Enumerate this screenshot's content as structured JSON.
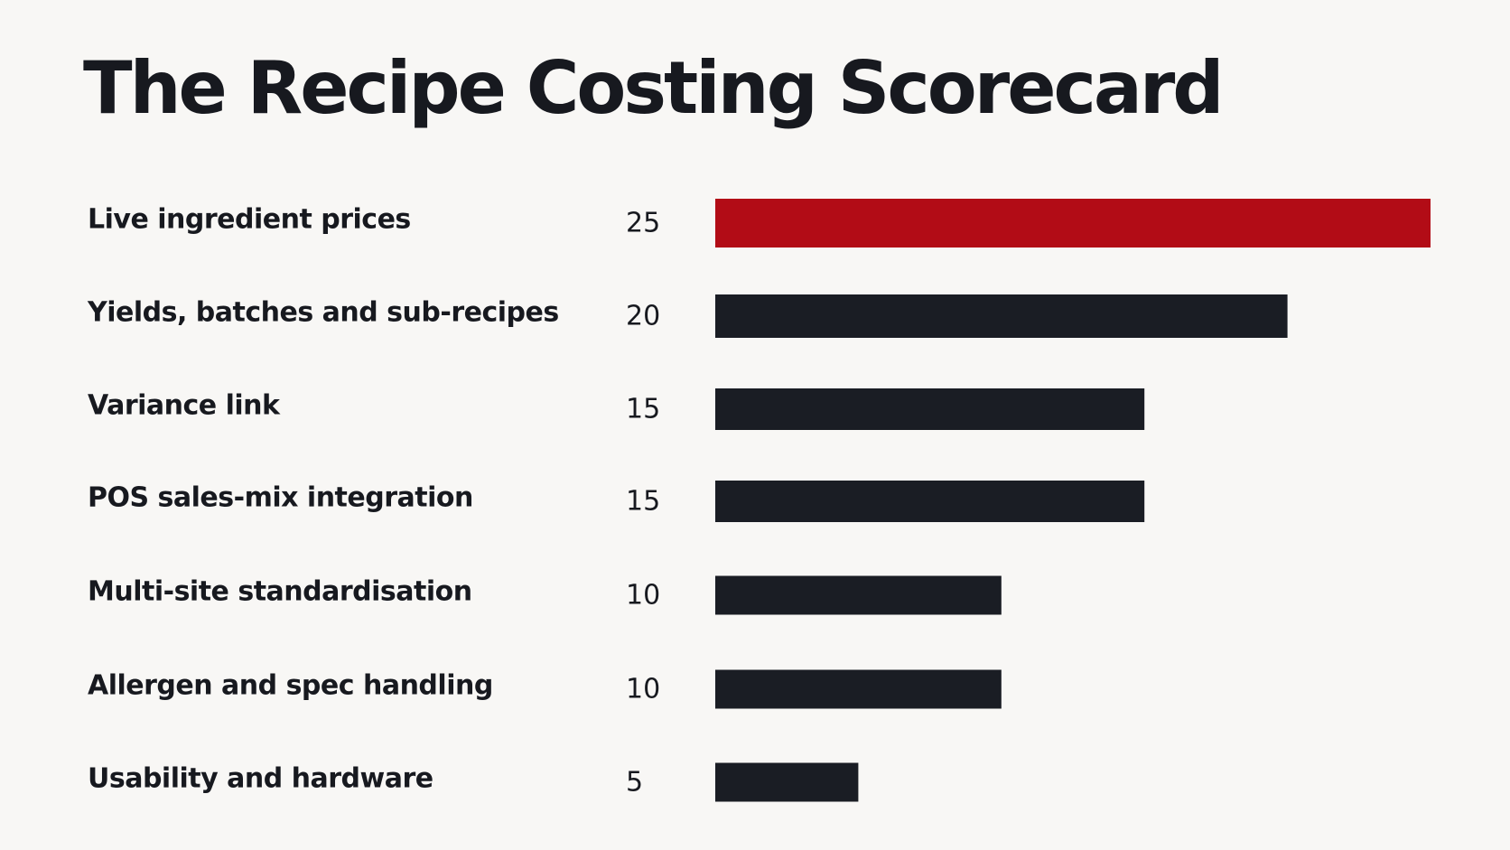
{
  "title": "The Recipe Costing Scorecard",
  "colors": {
    "background": "#f8f7f5",
    "text": "#17191f",
    "bar_default": "#1a1d24",
    "bar_highlight": "#b20c16"
  },
  "chart_data": {
    "type": "bar",
    "orientation": "horizontal",
    "title": "The Recipe Costing Scorecard",
    "categories": [
      "Live ingredient prices",
      "Yields, batches and sub-recipes",
      "Variance link",
      "POS sales-mix integration",
      "Multi-site standardisation",
      "Allergen and spec handling",
      "Usability and hardware"
    ],
    "values": [
      25,
      20,
      15,
      15,
      10,
      10,
      5
    ],
    "highlight_index": 0,
    "xlim": [
      0,
      25
    ],
    "grid": false,
    "legend": "none",
    "data_labels": true
  }
}
